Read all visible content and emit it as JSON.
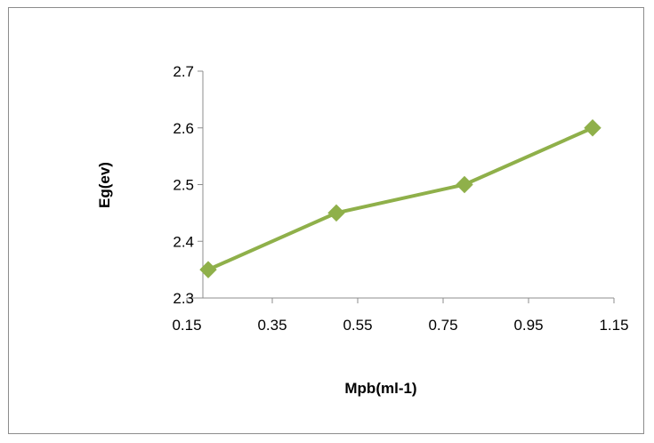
{
  "chart_data": {
    "type": "line",
    "title": "",
    "xlabel": "Mpb(ml-1)",
    "ylabel": "Eg(ev)",
    "xlim": [
      0.15,
      1.15
    ],
    "ylim": [
      2.3,
      2.7
    ],
    "x_ticks": [
      "0.15",
      "0.35",
      "0.55",
      "0.75",
      "0.95",
      "1.15"
    ],
    "y_ticks": [
      "2.3",
      "2.4",
      "2.5",
      "2.6",
      "2.7"
    ],
    "grid": false,
    "legend": "none",
    "series": [
      {
        "x": [
          0.2,
          0.5,
          0.8,
          1.1
        ],
        "y": [
          2.35,
          2.45,
          2.5,
          2.6
        ],
        "color": "#8fb04a",
        "marker": "diamond"
      }
    ]
  }
}
